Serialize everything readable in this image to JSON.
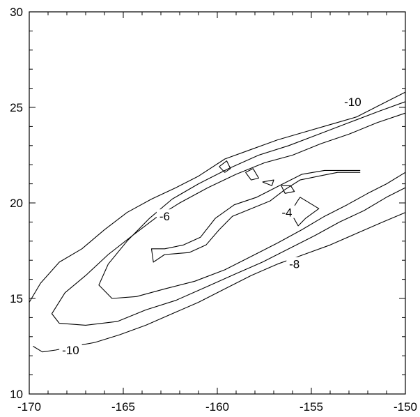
{
  "chart_data": {
    "type": "contour",
    "title": "",
    "xlabel": "",
    "ylabel": "",
    "xlim": [
      -170,
      -150
    ],
    "ylim": [
      10,
      30
    ],
    "x_ticks": [
      -170,
      -165,
      -160,
      -155,
      -150
    ],
    "y_ticks": [
      10,
      15,
      20,
      25,
      30
    ],
    "x_tick_labels": [
      "-170",
      "-165",
      "-160",
      "-155",
      "-150"
    ],
    "y_tick_labels": [
      "10",
      "15",
      "20",
      "25",
      "30"
    ],
    "x_minor_step": 1,
    "y_minor_step": 1,
    "grid": false,
    "levels": [
      -10,
      -8,
      -6,
      -4
    ],
    "contours": [
      {
        "level": -10,
        "points": [
          [
            -170,
            14.8
          ],
          [
            -169.4,
            15.8
          ],
          [
            -168.4,
            16.9
          ],
          [
            -167.2,
            17.6
          ],
          [
            -166,
            18.6
          ],
          [
            -164.8,
            19.5
          ],
          [
            -163.5,
            20.2
          ],
          [
            -162.2,
            20.8
          ],
          [
            -161,
            21.4
          ],
          [
            -159.6,
            22.3
          ],
          [
            -158.2,
            22.8
          ],
          [
            -156.8,
            23.3
          ],
          [
            -155.4,
            23.7
          ],
          [
            -154,
            24.1
          ],
          [
            -152.6,
            24.5
          ],
          [
            -151.2,
            25.2
          ],
          [
            -150,
            25.8
          ]
        ]
      },
      {
        "level": -10,
        "points": [
          [
            -169.8,
            12.5
          ],
          [
            -169.3,
            12.2
          ],
          [
            -168.6,
            12.3
          ],
          [
            -167.6,
            12.5
          ],
          [
            -166.5,
            12.7
          ],
          [
            -165.2,
            13.1
          ],
          [
            -163.8,
            13.6
          ],
          [
            -162.4,
            14.2
          ],
          [
            -161,
            14.8
          ],
          [
            -159.6,
            15.5
          ],
          [
            -158.2,
            16.2
          ],
          [
            -156.8,
            16.8
          ],
          [
            -155.4,
            17.3
          ],
          [
            -154,
            17.8
          ],
          [
            -152.6,
            18.4
          ],
          [
            -151.2,
            19
          ],
          [
            -150,
            19.5
          ]
        ]
      },
      {
        "level": -8,
        "points": [
          [
            -150,
            24.7
          ],
          [
            -151.5,
            24.2
          ],
          [
            -153,
            23.6
          ],
          [
            -154.5,
            23.1
          ],
          [
            -156,
            22.5
          ],
          [
            -157.5,
            22.1
          ],
          [
            -159,
            21.5
          ],
          [
            -160.5,
            20.8
          ],
          [
            -162,
            20
          ],
          [
            -163.3,
            19.2
          ],
          [
            -164.5,
            18.3
          ],
          [
            -165.8,
            17.3
          ],
          [
            -167,
            16.2
          ],
          [
            -168.1,
            15.3
          ],
          [
            -168.8,
            14.2
          ],
          [
            -168.4,
            13.7
          ],
          [
            -167,
            13.6
          ],
          [
            -165.3,
            13.8
          ],
          [
            -163.8,
            14.4
          ],
          [
            -162.2,
            14.9
          ],
          [
            -160.6,
            15.6
          ],
          [
            -159,
            16.3
          ],
          [
            -157.6,
            16.9
          ],
          [
            -156.2,
            17.6
          ],
          [
            -154.8,
            18.3
          ],
          [
            -153.5,
            19
          ],
          [
            -152.2,
            19.6
          ],
          [
            -151,
            20.3
          ],
          [
            -150,
            20.8
          ]
        ]
      },
      {
        "level": -6,
        "points": [
          [
            -150,
            25.3
          ],
          [
            -151.4,
            24.8
          ],
          [
            -153,
            24.2
          ],
          [
            -154.6,
            23.6
          ],
          [
            -156.2,
            23
          ],
          [
            -157.8,
            22.5
          ],
          [
            -159.4,
            21.8
          ],
          [
            -161,
            21
          ],
          [
            -162.4,
            20.2
          ],
          [
            -163.6,
            19.2
          ],
          [
            -164.8,
            18
          ],
          [
            -165.8,
            16.8
          ],
          [
            -166.3,
            15.7
          ],
          [
            -165.6,
            15
          ],
          [
            -164.3,
            15.1
          ],
          [
            -162.8,
            15.5
          ],
          [
            -161.2,
            15.9
          ],
          [
            -159.6,
            16.5
          ],
          [
            -158.2,
            17.2
          ],
          [
            -156.8,
            17.9
          ],
          [
            -155.5,
            18.6
          ],
          [
            -154.3,
            19.3
          ],
          [
            -153.1,
            19.9
          ],
          [
            -152,
            20.5
          ],
          [
            -151,
            21
          ],
          [
            -150,
            21.6
          ]
        ]
      },
      {
        "level": -4,
        "points": [
          [
            -152.4,
            21.6
          ],
          [
            -153.6,
            21.6
          ],
          [
            -154.6,
            21.4
          ],
          [
            -155.6,
            21.2
          ],
          [
            -156.4,
            20.7
          ],
          [
            -157.2,
            20.1
          ],
          [
            -158.2,
            19.7
          ],
          [
            -159.2,
            19.3
          ],
          [
            -159.9,
            18.6
          ],
          [
            -160.6,
            17.8
          ],
          [
            -161.5,
            17.4
          ],
          [
            -162.8,
            17.3
          ],
          [
            -163.4,
            16.9
          ],
          [
            -163.5,
            17.6
          ],
          [
            -162.8,
            17.6
          ],
          [
            -161.8,
            17.8
          ],
          [
            -160.9,
            18.2
          ],
          [
            -160.1,
            19.2
          ],
          [
            -159.1,
            19.9
          ],
          [
            -157.9,
            20.3
          ],
          [
            -156.7,
            20.9
          ],
          [
            -155.5,
            21.5
          ],
          [
            -154.3,
            21.7
          ],
          [
            -153.2,
            21.7
          ],
          [
            -152.4,
            21.7
          ]
        ]
      },
      {
        "level": -4,
        "points": [
          [
            -155.6,
            20.3
          ],
          [
            -154.6,
            19.7
          ],
          [
            -155.3,
            19.2
          ],
          [
            -155.7,
            18.8
          ],
          [
            -156.1,
            19.5
          ],
          [
            -155.8,
            20
          ],
          [
            -155.6,
            20.3
          ]
        ]
      },
      {
        "level": -4,
        "points": [
          [
            -159.9,
            21.9
          ],
          [
            -159.5,
            22.2
          ],
          [
            -159.3,
            21.8
          ],
          [
            -159.6,
            21.6
          ],
          [
            -159.9,
            21.9
          ]
        ]
      },
      {
        "level": -4,
        "points": [
          [
            -158.5,
            21.6
          ],
          [
            -158.1,
            21.8
          ],
          [
            -157.8,
            21.3
          ],
          [
            -158.2,
            21.2
          ],
          [
            -158.5,
            21.6
          ]
        ]
      },
      {
        "level": -4,
        "points": [
          [
            -157.6,
            21.1
          ],
          [
            -157,
            21.2
          ],
          [
            -157.1,
            20.9
          ],
          [
            -157.6,
            21.1
          ]
        ]
      },
      {
        "level": -4,
        "points": [
          [
            -156.6,
            20.9
          ],
          [
            -156.1,
            20.9
          ],
          [
            -155.9,
            20.6
          ],
          [
            -156.4,
            20.5
          ],
          [
            -156.6,
            20.9
          ]
        ]
      }
    ],
    "contour_labels": [
      {
        "text": "-10",
        "x": -152.8,
        "y": 25.3
      },
      {
        "text": "-6",
        "x": -162.8,
        "y": 19.3
      },
      {
        "text": "-4",
        "x": -156.3,
        "y": 19.5
      },
      {
        "text": "-8",
        "x": -155.9,
        "y": 16.8
      },
      {
        "text": "-10",
        "x": -167.8,
        "y": 12.3
      }
    ]
  }
}
